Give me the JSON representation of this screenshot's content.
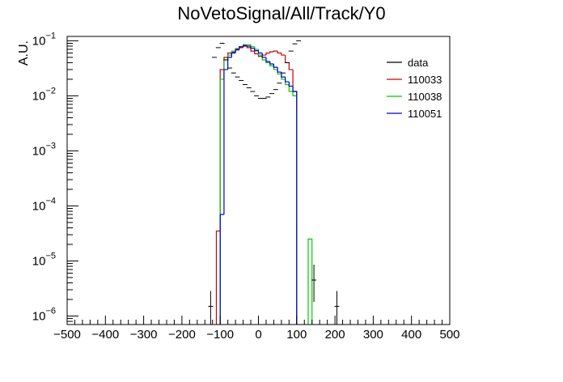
{
  "chart_data": {
    "type": "line",
    "title": "NoVetoSignal/All/Track/Y0",
    "xlabel": "",
    "ylabel": "A.U.",
    "xlim": [
      -500,
      500
    ],
    "ylim": [
      7e-07,
      0.12
    ],
    "yscale": "log",
    "x_tick_labels": [
      "−500",
      "−400",
      "−300",
      "−200",
      "−100",
      "0",
      "100",
      "200",
      "300",
      "400",
      "500"
    ],
    "x_tick_values": [
      -500,
      -400,
      -300,
      -200,
      -100,
      0,
      100,
      200,
      300,
      400,
      500
    ],
    "y_tick_values": [
      1e-06,
      1e-05,
      0.0001,
      0.001,
      0.01,
      0.1
    ],
    "y_tick_labels": [
      {
        "base": "10",
        "exp": "−6"
      },
      {
        "base": "10",
        "exp": "−5"
      },
      {
        "base": "10",
        "exp": "−4"
      },
      {
        "base": "10",
        "exp": "−3"
      },
      {
        "base": "10",
        "exp": "−2"
      },
      {
        "base": "10",
        "exp": "−1"
      }
    ],
    "legend_position": "top-right",
    "grid": false,
    "bin_width": 10,
    "series": [
      {
        "name": "110033",
        "color": "#cc0000",
        "style": "step",
        "bins": [
          [
            -110,
            3.5e-05
          ],
          [
            -100,
            0.03
          ],
          [
            -90,
            0.05
          ],
          [
            -80,
            0.06
          ],
          [
            -70,
            0.062
          ],
          [
            -60,
            0.068
          ],
          [
            -50,
            0.075
          ],
          [
            -40,
            0.08
          ],
          [
            -30,
            0.075
          ],
          [
            -20,
            0.065
          ],
          [
            -10,
            0.058
          ],
          [
            0,
            0.052
          ],
          [
            10,
            0.055
          ],
          [
            20,
            0.06
          ],
          [
            30,
            0.063
          ],
          [
            40,
            0.065
          ],
          [
            50,
            0.06
          ],
          [
            60,
            0.055
          ],
          [
            70,
            0.04
          ],
          [
            80,
            0.03
          ],
          [
            90,
            0.012
          ]
        ]
      },
      {
        "name": "110038",
        "color": "#00cc00",
        "style": "step",
        "bins": [
          [
            -100,
            0.02
          ],
          [
            -90,
            0.045
          ],
          [
            -80,
            0.055
          ],
          [
            -70,
            0.065
          ],
          [
            -60,
            0.072
          ],
          [
            -50,
            0.078
          ],
          [
            -40,
            0.085
          ],
          [
            -30,
            0.085
          ],
          [
            -20,
            0.078
          ],
          [
            -10,
            0.07
          ],
          [
            0,
            0.055
          ],
          [
            10,
            0.045
          ],
          [
            20,
            0.04
          ],
          [
            30,
            0.035
          ],
          [
            40,
            0.03
          ],
          [
            50,
            0.025
          ],
          [
            60,
            0.02
          ],
          [
            70,
            0.016
          ],
          [
            80,
            0.012
          ],
          [
            90,
            0.01
          ],
          [
            130,
            2.5e-05
          ]
        ]
      },
      {
        "name": "110051",
        "color": "#0000cc",
        "style": "step",
        "bins": [
          [
            -100,
            7e-05
          ],
          [
            -90,
            0.03
          ],
          [
            -80,
            0.05
          ],
          [
            -70,
            0.06
          ],
          [
            -60,
            0.07
          ],
          [
            -50,
            0.078
          ],
          [
            -40,
            0.082
          ],
          [
            -30,
            0.08
          ],
          [
            -20,
            0.073
          ],
          [
            -10,
            0.066
          ],
          [
            0,
            0.06
          ],
          [
            10,
            0.05
          ],
          [
            20,
            0.042
          ],
          [
            30,
            0.038
          ],
          [
            40,
            0.033
          ],
          [
            50,
            0.027
          ],
          [
            60,
            0.022
          ],
          [
            70,
            0.018
          ],
          [
            80,
            0.015
          ],
          [
            90,
            0.012
          ]
        ]
      },
      {
        "name": "data",
        "color": "#000000",
        "style": "errorbar",
        "points": [
          [
            -125,
            1.5e-06
          ],
          [
            -115,
            0.05
          ],
          [
            -105,
            0.075
          ],
          [
            -95,
            0.09
          ],
          [
            -85,
            0.045
          ],
          [
            -75,
            0.032
          ],
          [
            -65,
            0.026
          ],
          [
            -55,
            0.022
          ],
          [
            -45,
            0.019
          ],
          [
            -35,
            0.016
          ],
          [
            -25,
            0.014
          ],
          [
            -15,
            0.012
          ],
          [
            -5,
            0.01
          ],
          [
            5,
            0.009
          ],
          [
            15,
            0.009
          ],
          [
            25,
            0.0095
          ],
          [
            35,
            0.011
          ],
          [
            45,
            0.013
          ],
          [
            55,
            0.017
          ],
          [
            65,
            0.026
          ],
          [
            75,
            0.04
          ],
          [
            85,
            0.065
          ],
          [
            95,
            0.088
          ],
          [
            105,
            0.1
          ],
          [
            145,
            4.5e-06
          ],
          [
            205,
            1.5e-06
          ]
        ]
      }
    ]
  }
}
